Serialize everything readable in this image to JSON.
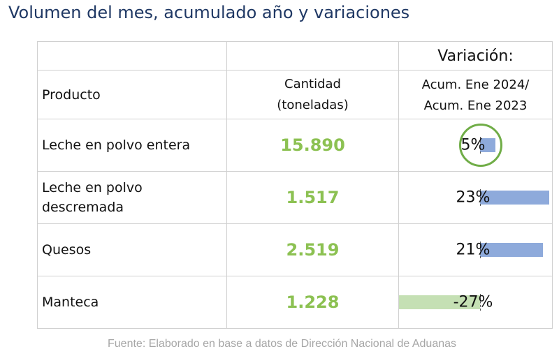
{
  "title": "Volumen del mes, acumulado año y variaciones",
  "header": {
    "producto": "Producto",
    "cantidad_line1": "Cantidad",
    "cantidad_line2": "(toneladas)",
    "variacion": "Variación:",
    "variacion_line1": "Acum. Ene 2024/",
    "variacion_line2": "Acum. Ene 2023"
  },
  "rows": [
    {
      "producto_line1": "Leche en polvo entera",
      "producto_line2": "",
      "cantidad": "15.890",
      "variacion": "5%",
      "variacion_value": 5,
      "highlighted": true
    },
    {
      "producto_line1": "Leche en polvo",
      "producto_line2": "descremada",
      "cantidad": "1.517",
      "variacion": "23%",
      "variacion_value": 23,
      "highlighted": false
    },
    {
      "producto_line1": "Quesos",
      "producto_line2": "",
      "cantidad": "2.519",
      "variacion": "21%",
      "variacion_value": 21,
      "highlighted": false
    },
    {
      "producto_line1": "Manteca",
      "producto_line2": "",
      "cantidad": "1.228",
      "variacion": "-27%",
      "variacion_value": -27,
      "highlighted": false
    }
  ],
  "colors": {
    "positive_bar": "#8eaadb",
    "negative_bar": "#c5e0b4",
    "quantity_text": "#8cc152",
    "highlight_circle": "#70ad47"
  },
  "source": "Fuente: Elaborado en base a datos de Dirección Nacional de Aduanas"
}
